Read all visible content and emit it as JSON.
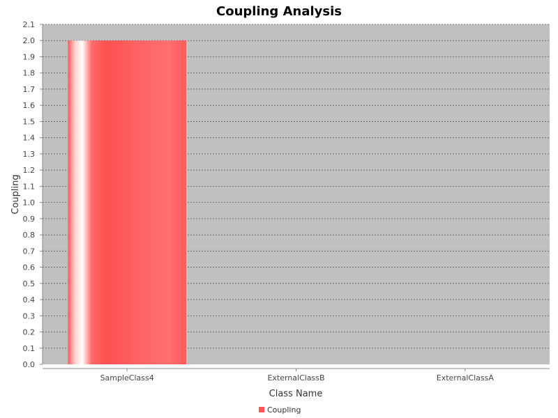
{
  "chart_data": {
    "type": "bar",
    "title": "Coupling Analysis",
    "xlabel": "Class Name",
    "ylabel": "Coupling",
    "categories": [
      "SampleClass4",
      "ExternalClassB",
      "ExternalClassA"
    ],
    "series": [
      {
        "name": "Coupling",
        "values": [
          2.0,
          0.0,
          0.0
        ]
      }
    ],
    "ylim": [
      0,
      2.1
    ],
    "ytick_step": 0.1,
    "ytick_labels": [
      "0.0",
      "0.1",
      "0.2",
      "0.3",
      "0.4",
      "0.5",
      "0.6",
      "0.7",
      "0.8",
      "0.9",
      "1.0",
      "1.1",
      "1.2",
      "1.3",
      "1.4",
      "1.5",
      "1.6",
      "1.7",
      "1.8",
      "1.9",
      "2.0",
      "2.1"
    ],
    "grid": true,
    "legend_position": "bottom-center",
    "colors": {
      "plot_background": "#c0c0c0",
      "bar": "#ff5555",
      "grid": "#5a5a5a"
    }
  }
}
